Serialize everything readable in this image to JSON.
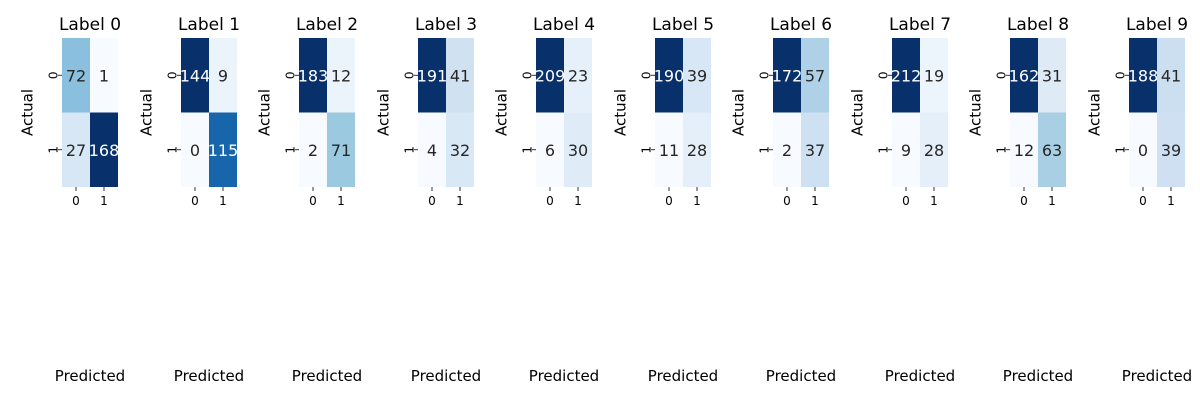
{
  "chart_data": [
    {
      "type": "heatmap",
      "title": "Label 0",
      "xlabel": "Predicted",
      "ylabel": "Actual",
      "x_ticks": [
        "0",
        "1"
      ],
      "y_ticks": [
        "0",
        "1"
      ],
      "matrix": [
        [
          72,
          1
        ],
        [
          27,
          168
        ]
      ]
    },
    {
      "type": "heatmap",
      "title": "Label 1",
      "xlabel": "Predicted",
      "ylabel": "Actual",
      "x_ticks": [
        "0",
        "1"
      ],
      "y_ticks": [
        "0",
        "1"
      ],
      "matrix": [
        [
          144,
          9
        ],
        [
          0,
          115
        ]
      ]
    },
    {
      "type": "heatmap",
      "title": "Label 2",
      "xlabel": "Predicted",
      "ylabel": "Actual",
      "x_ticks": [
        "0",
        "1"
      ],
      "y_ticks": [
        "0",
        "1"
      ],
      "matrix": [
        [
          183,
          12
        ],
        [
          2,
          71
        ]
      ]
    },
    {
      "type": "heatmap",
      "title": "Label 3",
      "xlabel": "Predicted",
      "ylabel": "Actual",
      "x_ticks": [
        "0",
        "1"
      ],
      "y_ticks": [
        "0",
        "1"
      ],
      "matrix": [
        [
          191,
          41
        ],
        [
          4,
          32
        ]
      ]
    },
    {
      "type": "heatmap",
      "title": "Label 4",
      "xlabel": "Predicted",
      "ylabel": "Actual",
      "x_ticks": [
        "0",
        "1"
      ],
      "y_ticks": [
        "0",
        "1"
      ],
      "matrix": [
        [
          209,
          23
        ],
        [
          6,
          30
        ]
      ]
    },
    {
      "type": "heatmap",
      "title": "Label 5",
      "xlabel": "Predicted",
      "ylabel": "Actual",
      "x_ticks": [
        "0",
        "1"
      ],
      "y_ticks": [
        "0",
        "1"
      ],
      "matrix": [
        [
          190,
          39
        ],
        [
          11,
          28
        ]
      ]
    },
    {
      "type": "heatmap",
      "title": "Label 6",
      "xlabel": "Predicted",
      "ylabel": "Actual",
      "x_ticks": [
        "0",
        "1"
      ],
      "y_ticks": [
        "0",
        "1"
      ],
      "matrix": [
        [
          172,
          57
        ],
        [
          2,
          37
        ]
      ]
    },
    {
      "type": "heatmap",
      "title": "Label 7",
      "xlabel": "Predicted",
      "ylabel": "Actual",
      "x_ticks": [
        "0",
        "1"
      ],
      "y_ticks": [
        "0",
        "1"
      ],
      "matrix": [
        [
          212,
          19
        ],
        [
          9,
          28
        ]
      ]
    },
    {
      "type": "heatmap",
      "title": "Label 8",
      "xlabel": "Predicted",
      "ylabel": "Actual",
      "x_ticks": [
        "0",
        "1"
      ],
      "y_ticks": [
        "0",
        "1"
      ],
      "matrix": [
        [
          162,
          31
        ],
        [
          12,
          63
        ]
      ]
    },
    {
      "type": "heatmap",
      "title": "Label 9",
      "xlabel": "Predicted",
      "ylabel": "Actual",
      "x_ticks": [
        "0",
        "1"
      ],
      "y_ticks": [
        "0",
        "1"
      ],
      "matrix": [
        [
          188,
          41
        ],
        [
          0,
          39
        ]
      ]
    }
  ],
  "colormap": {
    "name": "Blues",
    "low": "#f7fbff",
    "high": "#08306b"
  }
}
